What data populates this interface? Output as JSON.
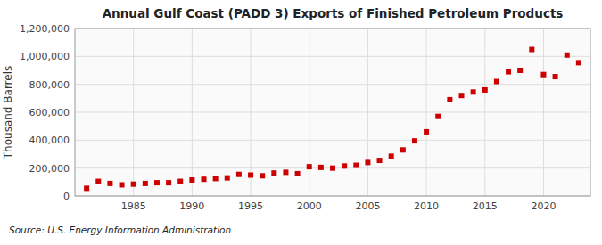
{
  "chart_data": {
    "type": "scatter",
    "title": "Annual Gulf Coast (PADD 3) Exports of Finished Petroleum Products",
    "ylabel": "Thousand Barrels",
    "source": "Source: U.S. Energy Information Administration",
    "x": [
      1981,
      1982,
      1983,
      1984,
      1985,
      1986,
      1987,
      1988,
      1989,
      1990,
      1991,
      1992,
      1993,
      1994,
      1995,
      1996,
      1997,
      1998,
      1999,
      2000,
      2001,
      2002,
      2003,
      2004,
      2005,
      2006,
      2007,
      2008,
      2009,
      2010,
      2011,
      2012,
      2013,
      2014,
      2015,
      2016,
      2017,
      2018,
      2019,
      2020,
      2021,
      2022,
      2023
    ],
    "values": [
      55000,
      105000,
      90000,
      80000,
      85000,
      90000,
      95000,
      95000,
      105000,
      115000,
      120000,
      125000,
      130000,
      155000,
      150000,
      145000,
      165000,
      170000,
      160000,
      210000,
      205000,
      200000,
      215000,
      220000,
      240000,
      255000,
      285000,
      330000,
      395000,
      460000,
      570000,
      690000,
      720000,
      745000,
      760000,
      820000,
      890000,
      900000,
      1050000,
      870000,
      855000,
      1010000,
      955000
    ],
    "color": "#cc0000",
    "marker": "square",
    "xlim": [
      1980,
      2024
    ],
    "xticks": [
      1985,
      1990,
      1995,
      2000,
      2005,
      2010,
      2015,
      2020
    ],
    "ylim": [
      0,
      1200000
    ],
    "yticks": [
      0,
      {
        "value": 200000,
        "label": "200,000"
      },
      {
        "value": 400000,
        "label": "400,000"
      },
      {
        "value": 600000,
        "label": "600,000"
      },
      {
        "value": 800000,
        "label": "800,000"
      },
      {
        "value": 1000000,
        "label": "1,000,000"
      },
      {
        "value": 1200000,
        "label": "1,200,000"
      }
    ],
    "grid": true
  }
}
